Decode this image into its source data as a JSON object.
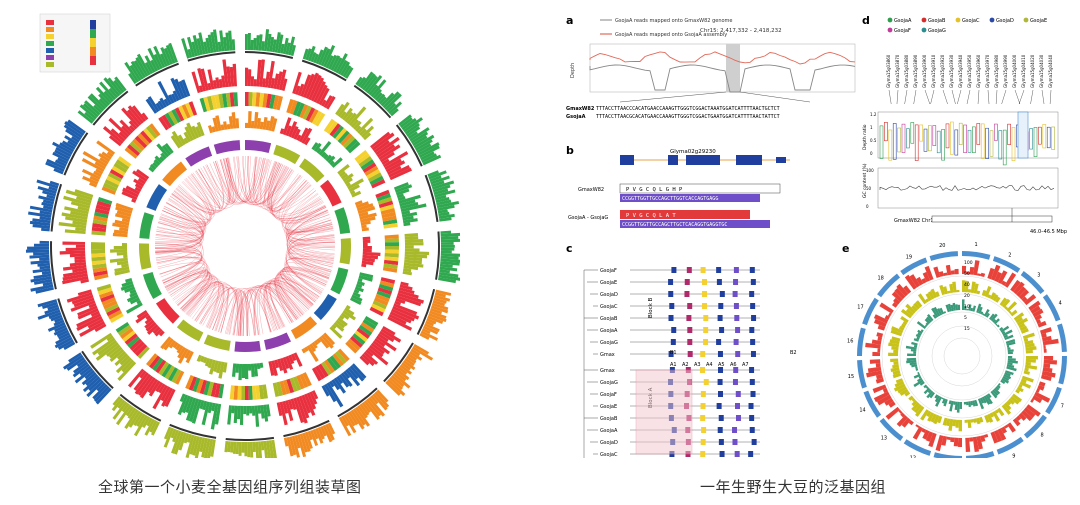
{
  "captions": {
    "left": "全球第一个小麦全基因组序列组装草图",
    "right": "一年生野生大豆的泛基因组"
  },
  "right_figure": {
    "panel_labels": [
      "a",
      "b",
      "c",
      "d",
      "e"
    ],
    "panel_a": {
      "legend_1": "GsojaA reads mapped onto GmaxW82 genome",
      "legend_2": "GsojaA reads mapped onto GsojaA assembly",
      "region": "Chr15: 2,417,332 - 2,418,232",
      "ylabel": "Depth",
      "seq_label_1": "GmaxW82",
      "seq_label_2": "GsojaA",
      "seq_1": "TTTACCTTAACCCACATGAACCAAAGTTGGGTCGGACTAAATGGATCATTTTAACTGCTCT",
      "seq_2": "TTTACCTTAACGCACATGAACCAAAGTTGGGTCGGACTGAATGGATCATTTTAACTATTCT"
    },
    "panel_b": {
      "gene": "Glyma02g29230",
      "label_1": "GmaxW82",
      "label_2": "GsojaA - GsojaG",
      "aa_1": "P  V  G  C  Q  L  G  H  P",
      "aa_2": "P  V  G  C  Q  L  A  T",
      "seq_1": "CCGGTTGGTTGCCAGCTTGGTCACCAGTGAGG",
      "seq_2": "CCGGTTGGTTGCCAGCTTGCTCACAGGTGAGGTGC"
    },
    "panel_c": {
      "rows": [
        "GsojaF",
        "GsojaE",
        "GsojaD",
        "GsojaC",
        "GsojaB",
        "GsojaA",
        "GsojaG",
        "Gmax",
        "Gmax",
        "GsojaG",
        "GsojaF",
        "GsojaE",
        "GsojaB",
        "GsojaA",
        "GsojaD",
        "GsojaC"
      ],
      "block_1": "Block B",
      "block_2": "Block A",
      "markers": [
        "A1",
        "A2",
        "A3",
        "A4",
        "A5",
        "A6",
        "A7"
      ],
      "marker_b": [
        "B1",
        "B2"
      ]
    },
    "panel_d": {
      "legend": [
        "GsojaA",
        "GsojaB",
        "GsojaC",
        "GsojaD",
        "GsojaE",
        "GsojaF",
        "GsojaG"
      ],
      "legend_colors": [
        "#2e9e4f",
        "#d62c2c",
        "#e6c229",
        "#2b4aa8",
        "#b0b83a",
        "#c33b9a",
        "#2a8d8f"
      ],
      "genes": [
        "Glyma15g03860",
        "Glyma15g03870",
        "Glyma15g03880",
        "Glyma15g03890",
        "Glyma15g03900",
        "Glyma15g03910",
        "Glyma15g03920",
        "Glyma15g03930",
        "Glyma15g03940",
        "Glyma15g03950",
        "Glyma15g03960",
        "Glyma15g03970",
        "Glyma15g03980",
        "Glyma15g03990",
        "Glyma15g04000",
        "Glyma15g04010",
        "Glyma15g04020",
        "Glyma15g04030",
        "Glyma15g04040"
      ],
      "ylabel_1": "Depth ratio",
      "ylabel_2": "GC content (%)",
      "yticks_1": [
        "1.2",
        "1",
        "0.5",
        "0"
      ],
      "yticks_2": [
        "100",
        "50",
        "0"
      ],
      "chrom_label": "GmaxW82 Chr15",
      "range_label": "46.0–46.5 Mbp"
    },
    "panel_e": {
      "ring_ticks": [
        "100",
        "50",
        "40",
        "20",
        "10",
        "5",
        "15"
      ],
      "chrom_numbers": [
        "1",
        "2",
        "3",
        "4",
        "5",
        "6",
        "7",
        "8",
        "9",
        "10",
        "11",
        "12",
        "13",
        "14",
        "15",
        "16",
        "17",
        "18",
        "19",
        "20"
      ]
    }
  },
  "colors": {
    "left_green": "#2fa84f",
    "left_red": "#e8303f",
    "left_orange": "#f18a21",
    "left_blue": "#1f5fae",
    "left_olive": "#a8b92a",
    "left_purple": "#8e3fae",
    "right_red": "#e8433a",
    "right_yellow": "#c9c218",
    "right_teal": "#3a9a7a",
    "right_blue": "#4b8fcf"
  }
}
